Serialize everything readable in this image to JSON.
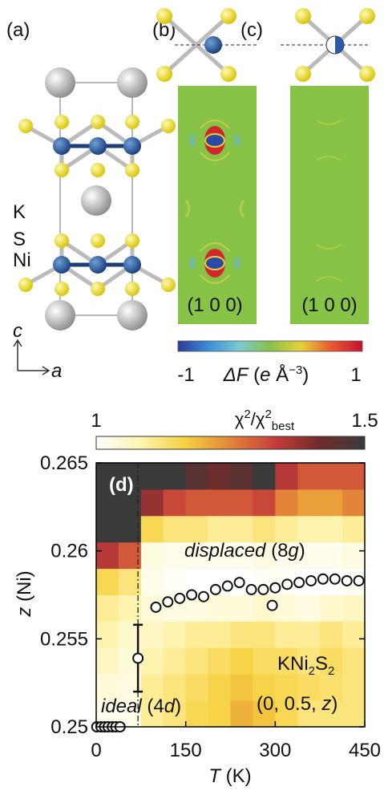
{
  "panel_labels": [
    "(a)",
    "(b)",
    "(c)",
    "(d)"
  ],
  "structure": {
    "atoms": [
      "K",
      "S",
      "Ni"
    ],
    "axes": [
      "c",
      "a"
    ]
  },
  "maps": {
    "labels": [
      "(1 0 0)",
      "(1 0 0)"
    ],
    "colorbar": {
      "ticks": [
        -1,
        1
      ],
      "label": [
        "ΔF",
        " (",
        "e",
        " Å",
        "−3",
        ")"
      ],
      "colors": [
        "#2b3a9a",
        "#3a8fd6",
        "#7cc8d0",
        "#86c346",
        "#e6d13a",
        "#e8582e",
        "#c4122c"
      ]
    }
  },
  "chart_data": {
    "type": "scatter",
    "xlabel": [
      "T",
      " (K)"
    ],
    "ylabel": [
      "z",
      " (Ni)"
    ],
    "xlim": [
      0,
      450
    ],
    "xticks": [
      0,
      150,
      300,
      450
    ],
    "ylim": [
      0.25,
      0.265
    ],
    "yticks": [
      0.25,
      0.255,
      0.26,
      0.265
    ],
    "reference_line": {
      "x": 70
    },
    "series": [
      {
        "color": "#111111",
        "x": [
          1,
          8,
          14,
          20,
          27,
          33,
          40,
          70,
          100,
          120,
          140,
          160,
          180,
          200,
          220,
          240,
          260,
          280,
          295,
          300,
          320,
          340,
          360,
          380,
          400,
          420,
          440
        ],
        "values": [
          0.25,
          0.25,
          0.25,
          0.25,
          0.25,
          0.25,
          0.25,
          0.2539,
          0.2568,
          0.2571,
          0.2573,
          0.2575,
          0.2574,
          0.2578,
          0.258,
          0.2582,
          0.2578,
          0.2578,
          0.2569,
          0.2579,
          0.2581,
          0.2582,
          0.2583,
          0.2584,
          0.2584,
          0.2583,
          0.2583
        ],
        "errors": [
          null,
          null,
          null,
          null,
          null,
          null,
          null,
          0.0019,
          null,
          null,
          null,
          null,
          null,
          null,
          null,
          null,
          null,
          null,
          null,
          null,
          null,
          null,
          null,
          null,
          null,
          null,
          null
        ]
      }
    ],
    "heatmap": {
      "x_edges": [
        0,
        37.5,
        75,
        112.5,
        150,
        187.5,
        225,
        262.5,
        300,
        337.5,
        375,
        412.5,
        450
      ],
      "y_edges": [
        0.25,
        0.2515,
        0.253,
        0.2545,
        0.256,
        0.2575,
        0.259,
        0.2605,
        0.262,
        0.2635,
        0.265
      ],
      "values": [
        [
          1.02,
          1.02,
          1.1,
          1.12,
          1.15,
          1.16,
          1.2,
          1.18,
          1.15,
          1.12,
          1.12,
          1.12
        ],
        [
          1.04,
          1.03,
          1.1,
          1.12,
          1.14,
          1.16,
          1.18,
          1.16,
          1.15,
          1.14,
          1.13,
          1.12
        ],
        [
          1.06,
          1.04,
          1.08,
          1.1,
          1.12,
          1.14,
          1.16,
          1.14,
          1.14,
          1.12,
          1.14,
          1.12
        ],
        [
          1.08,
          1.05,
          1.06,
          1.08,
          1.1,
          1.1,
          1.12,
          1.12,
          1.1,
          1.1,
          1.12,
          1.1
        ],
        [
          1.1,
          1.08,
          1.04,
          1.03,
          1.03,
          1.04,
          1.04,
          1.05,
          1.04,
          1.03,
          1.05,
          1.06
        ],
        [
          1.15,
          1.12,
          1.02,
          1.01,
          1.0,
          1.0,
          1.0,
          1.01,
          1.01,
          1.0,
          1.0,
          1.01
        ],
        [
          1.35,
          1.3,
          1.03,
          1.02,
          1.02,
          1.02,
          1.02,
          1.03,
          1.02,
          1.02,
          1.02,
          1.03
        ],
        [
          1.5,
          1.5,
          1.15,
          1.12,
          1.12,
          1.1,
          1.1,
          1.12,
          1.1,
          1.08,
          1.08,
          1.1
        ],
        [
          1.5,
          1.5,
          1.38,
          1.32,
          1.3,
          1.3,
          1.3,
          1.32,
          1.25,
          1.22,
          1.22,
          1.25
        ],
        [
          1.5,
          1.5,
          1.5,
          1.5,
          1.45,
          1.42,
          1.45,
          1.5,
          1.35,
          1.3,
          1.3,
          1.3
        ]
      ],
      "colorbar": {
        "label": [
          "χ",
          "2",
          "/χ",
          "2",
          "best"
        ],
        "lim": [
          1,
          1.5
        ],
        "ticks": [
          1,
          1.5
        ],
        "colors": [
          "#ffffff",
          "#fff4ac",
          "#f6d03e",
          "#e2853a",
          "#c63c3a",
          "#6e2c2c",
          "#3a3a3a"
        ]
      }
    },
    "annotations": {
      "displaced": [
        "displaced",
        " (8",
        "g",
        ")"
      ],
      "ideal": [
        "ideal",
        " (4",
        "d",
        ")"
      ],
      "compound": [
        "KNi",
        "2",
        "S",
        "2"
      ],
      "position": [
        "(0, 0.5, ",
        "z",
        ")"
      ]
    }
  }
}
